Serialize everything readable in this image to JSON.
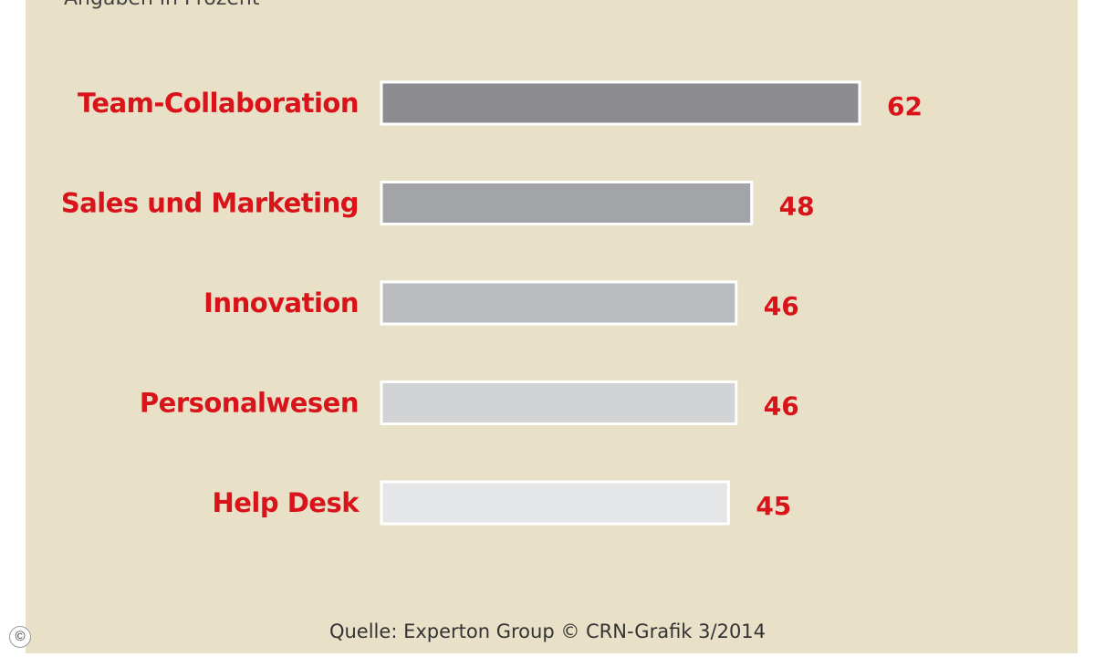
{
  "header": {
    "subtitle": "Angaben in Prozent"
  },
  "chart_data": {
    "type": "bar",
    "orientation": "horizontal",
    "categories": [
      "Team-Collaboration",
      "Sales und Marketing",
      "Innovation",
      "Personalwesen",
      "Help Desk"
    ],
    "values": [
      62,
      48,
      46,
      46,
      45
    ],
    "value_labels": [
      "62",
      "48",
      "46",
      "46",
      "45"
    ],
    "bar_colors": [
      "#8c8c90",
      "#a2a4a7",
      "#b9bbbe",
      "#d1d3d5",
      "#e5e6e8"
    ],
    "label_color": "#d8141a",
    "background": "#e9e0c8",
    "grid": false,
    "legend": "none"
  },
  "footer": {
    "source": "Quelle: Experton Group © CRN-Grafik 3/2014"
  },
  "badge": {
    "symbol": "©"
  }
}
